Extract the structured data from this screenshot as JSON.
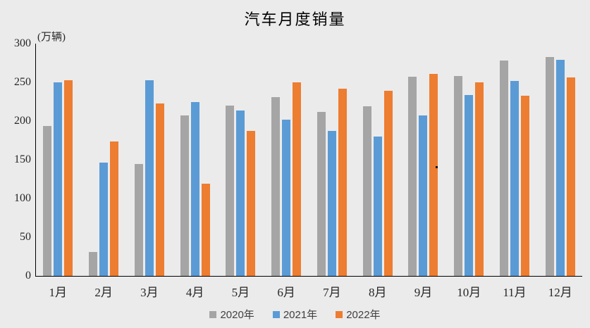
{
  "page": {
    "background_color": "#EBEBEB"
  },
  "chart_data": {
    "type": "bar",
    "title": "汽车月度销量",
    "unit_label": "(万辆)",
    "categories": [
      "1月",
      "2月",
      "3月",
      "4月",
      "5月",
      "6月",
      "7月",
      "8月",
      "9月",
      "10月",
      "11月",
      "12月"
    ],
    "series": [
      {
        "name": "2020年",
        "color": "#A5A5A5",
        "values": [
          194,
          31,
          145,
          207,
          220,
          231,
          212,
          219,
          257,
          258,
          278,
          283
        ]
      },
      {
        "name": "2021年",
        "color": "#5B9BD5",
        "values": [
          250,
          146,
          253,
          225,
          214,
          202,
          187,
          180,
          207,
          234,
          252,
          279
        ]
      },
      {
        "name": "2022年",
        "color": "#ED7D31",
        "values": [
          253,
          174,
          223,
          119,
          187,
          250,
          242,
          239,
          261,
          250,
          233,
          256
        ]
      }
    ],
    "y_axis": {
      "min": 0,
      "max": 300,
      "tick_interval": 50,
      "ticks": [
        0,
        50,
        100,
        150,
        200,
        250,
        300
      ]
    },
    "grid": false,
    "legend_position": "bottom",
    "axis_color": "#000000",
    "text_color": "#262626"
  }
}
